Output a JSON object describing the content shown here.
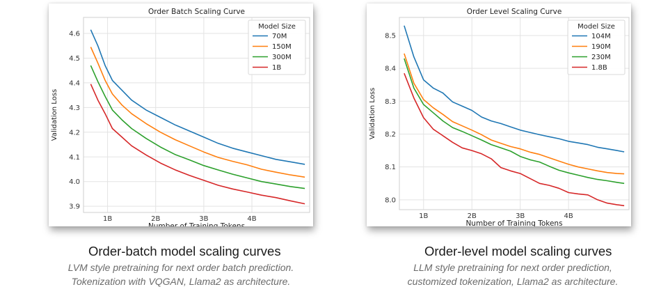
{
  "chart_data": [
    {
      "type": "line",
      "title": "Order Batch Scaling Curve",
      "xlabel": "Number of Training Tokens",
      "ylabel": "Validation Loss",
      "xlim": [
        0.5,
        5.2
      ],
      "ylim": [
        3.875,
        4.665
      ],
      "x_ticks": [
        {
          "v": 1,
          "label": "1B"
        },
        {
          "v": 2,
          "label": "2B"
        },
        {
          "v": 3,
          "label": "3B"
        },
        {
          "v": 4,
          "label": "4B"
        }
      ],
      "y_ticks": [
        {
          "v": 3.9,
          "label": "3.9"
        },
        {
          "v": 4.0,
          "label": "4.0"
        },
        {
          "v": 4.1,
          "label": "4.1"
        },
        {
          "v": 4.2,
          "label": "4.2"
        },
        {
          "v": 4.3,
          "label": "4.3"
        },
        {
          "v": 4.4,
          "label": "4.4"
        },
        {
          "v": 4.5,
          "label": "4.5"
        },
        {
          "v": 4.6,
          "label": "4.6"
        }
      ],
      "grid": true,
      "legend": {
        "title": "Model Size",
        "placement": "top-right"
      },
      "series": [
        {
          "name": "70M",
          "color": "#1f77b4",
          "x": [
            0.65,
            0.8,
            0.95,
            1.1,
            1.3,
            1.5,
            1.8,
            2.1,
            2.4,
            2.7,
            3.0,
            3.3,
            3.6,
            3.9,
            4.2,
            4.5,
            4.8,
            5.1
          ],
          "y": [
            4.615,
            4.55,
            4.47,
            4.41,
            4.37,
            4.33,
            4.29,
            4.26,
            4.23,
            4.205,
            4.18,
            4.155,
            4.135,
            4.12,
            4.105,
            4.09,
            4.08,
            4.07
          ]
        },
        {
          "name": "150M",
          "color": "#ff7f0e",
          "x": [
            0.65,
            0.8,
            0.95,
            1.1,
            1.3,
            1.5,
            1.8,
            2.1,
            2.4,
            2.7,
            3.0,
            3.3,
            3.6,
            3.9,
            4.2,
            4.5,
            4.8,
            5.1
          ],
          "y": [
            4.545,
            4.48,
            4.41,
            4.355,
            4.31,
            4.275,
            4.235,
            4.2,
            4.17,
            4.145,
            4.12,
            4.098,
            4.082,
            4.068,
            4.05,
            4.038,
            4.027,
            4.018
          ]
        },
        {
          "name": "300M",
          "color": "#2ca02c",
          "x": [
            0.65,
            0.8,
            0.95,
            1.1,
            1.3,
            1.5,
            1.8,
            2.1,
            2.4,
            2.7,
            3.0,
            3.3,
            3.6,
            3.9,
            4.2,
            4.5,
            4.8,
            5.1
          ],
          "y": [
            4.47,
            4.405,
            4.345,
            4.29,
            4.25,
            4.215,
            4.175,
            4.14,
            4.11,
            4.088,
            4.065,
            4.047,
            4.03,
            4.015,
            4.0,
            3.99,
            3.98,
            3.972
          ]
        },
        {
          "name": "1B",
          "color": "#d62728",
          "x": [
            0.65,
            0.8,
            0.95,
            1.1,
            1.3,
            1.5,
            1.8,
            2.1,
            2.4,
            2.7,
            3.0,
            3.3,
            3.6,
            3.9,
            4.2,
            4.5,
            4.8,
            5.1
          ],
          "y": [
            4.395,
            4.33,
            4.275,
            4.215,
            4.18,
            4.145,
            4.108,
            4.075,
            4.048,
            4.025,
            4.005,
            3.985,
            3.97,
            3.958,
            3.945,
            3.935,
            3.922,
            3.91
          ]
        }
      ]
    },
    {
      "type": "line",
      "title": "Order Level Scaling Curve",
      "xlabel": "Number of Training Tokens",
      "ylabel": "Validation Loss",
      "xlim": [
        0.5,
        5.25
      ],
      "ylim": [
        7.97,
        8.555
      ],
      "x_ticks": [
        {
          "v": 1,
          "label": "1B"
        },
        {
          "v": 2,
          "label": "2B"
        },
        {
          "v": 3,
          "label": "3B"
        },
        {
          "v": 4,
          "label": "4B"
        }
      ],
      "y_ticks": [
        {
          "v": 8.0,
          "label": "8.0"
        },
        {
          "v": 8.1,
          "label": "8.1"
        },
        {
          "v": 8.2,
          "label": "8.2"
        },
        {
          "v": 8.3,
          "label": "8.3"
        },
        {
          "v": 8.4,
          "label": "8.4"
        },
        {
          "v": 8.5,
          "label": "8.5"
        }
      ],
      "grid": true,
      "legend": {
        "title": "Model Size",
        "placement": "top-right"
      },
      "series": [
        {
          "name": "104M",
          "color": "#1f77b4",
          "x": [
            0.6,
            0.8,
            1.0,
            1.2,
            1.4,
            1.6,
            1.8,
            2.0,
            2.2,
            2.4,
            2.6,
            2.8,
            3.0,
            3.2,
            3.4,
            3.6,
            3.8,
            4.0,
            4.2,
            4.4,
            4.6,
            4.8,
            5.0,
            5.15
          ],
          "y": [
            8.53,
            8.435,
            8.365,
            8.34,
            8.325,
            8.298,
            8.285,
            8.272,
            8.252,
            8.24,
            8.232,
            8.222,
            8.212,
            8.205,
            8.198,
            8.192,
            8.186,
            8.178,
            8.173,
            8.168,
            8.16,
            8.155,
            8.15,
            8.146
          ]
        },
        {
          "name": "190M",
          "color": "#ff7f0e",
          "x": [
            0.6,
            0.8,
            1.0,
            1.2,
            1.4,
            1.6,
            1.8,
            2.0,
            2.2,
            2.4,
            2.6,
            2.8,
            3.0,
            3.2,
            3.4,
            3.6,
            3.8,
            4.0,
            4.2,
            4.4,
            4.6,
            4.8,
            5.0,
            5.15
          ],
          "y": [
            8.445,
            8.355,
            8.305,
            8.28,
            8.26,
            8.238,
            8.225,
            8.212,
            8.198,
            8.182,
            8.172,
            8.162,
            8.155,
            8.145,
            8.138,
            8.128,
            8.118,
            8.108,
            8.1,
            8.094,
            8.088,
            8.083,
            8.08,
            8.079
          ]
        },
        {
          "name": "230M",
          "color": "#2ca02c",
          "x": [
            0.6,
            0.8,
            1.0,
            1.2,
            1.4,
            1.6,
            1.8,
            2.0,
            2.2,
            2.4,
            2.6,
            2.8,
            3.0,
            3.2,
            3.4,
            3.6,
            3.8,
            4.0,
            4.2,
            4.4,
            4.6,
            4.8,
            5.0,
            5.15
          ],
          "y": [
            8.43,
            8.34,
            8.29,
            8.265,
            8.24,
            8.22,
            8.208,
            8.195,
            8.182,
            8.168,
            8.158,
            8.148,
            8.132,
            8.122,
            8.115,
            8.102,
            8.09,
            8.082,
            8.075,
            8.068,
            8.062,
            8.058,
            8.053,
            8.05
          ]
        },
        {
          "name": "1.8B",
          "color": "#d62728",
          "x": [
            0.6,
            0.8,
            1.0,
            1.2,
            1.4,
            1.6,
            1.8,
            2.0,
            2.2,
            2.4,
            2.6,
            2.8,
            3.0,
            3.2,
            3.4,
            3.6,
            3.8,
            4.0,
            4.2,
            4.4,
            4.6,
            4.8,
            5.0,
            5.15
          ],
          "y": [
            8.385,
            8.31,
            8.25,
            8.215,
            8.195,
            8.175,
            8.158,
            8.15,
            8.14,
            8.125,
            8.098,
            8.088,
            8.08,
            8.065,
            8.05,
            8.044,
            8.035,
            8.022,
            8.018,
            8.015,
            8.0,
            7.99,
            7.985,
            7.982
          ]
        }
      ]
    }
  ],
  "captions": [
    {
      "title": "Order-batch model scaling curves",
      "lines": [
        "LVM style pretraining for next order batch prediction.",
        "Tokenization with VQGAN, Llama2 as architecture."
      ]
    },
    {
      "title": "Order-level model scaling curves",
      "lines": [
        "LLM style pretraining for next order prediction,",
        "customized tokenization, Llama2 as architecture."
      ]
    }
  ]
}
